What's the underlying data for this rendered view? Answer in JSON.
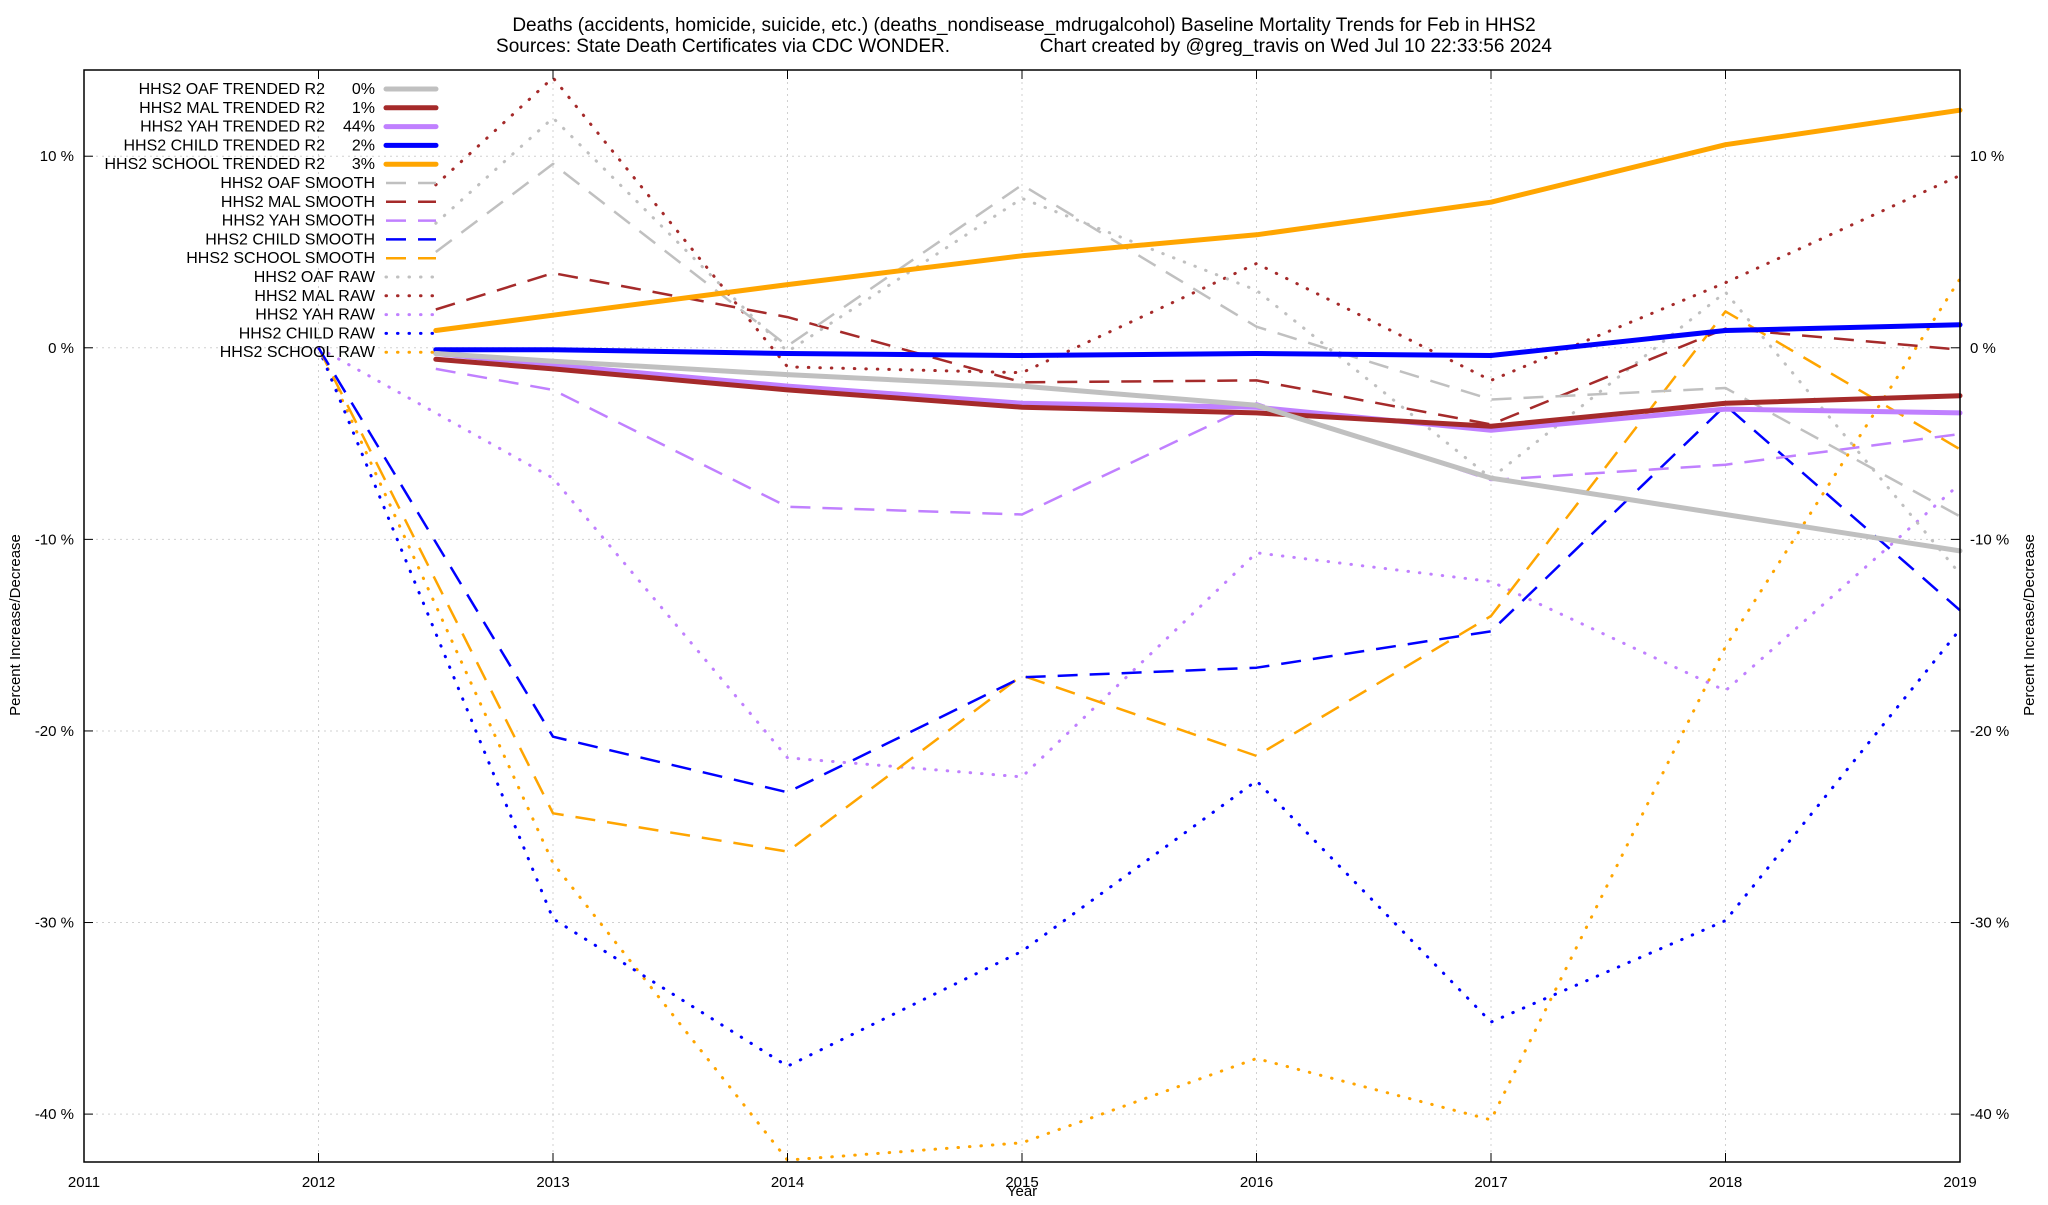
{
  "chart_data": {
    "type": "line",
    "title_lines": [
      "Deaths (accidents, homicide, suicide, etc.) (deaths_nondisease_mdrugalcohol)  Baseline Mortality Trends for Feb in HHS2",
      "Sources: State Death Certificates via CDC WONDER.                 Chart created by @greg_travis on Wed Jul 10 22:33:56 2024"
    ],
    "xlabel": "Year",
    "ylabel": "Percent Increase/Decrease",
    "y2label": "Percent Increase/Decrease",
    "xlim": [
      2011,
      2019
    ],
    "ylim": [
      -42.5,
      14.5
    ],
    "x_ticks": [
      2011,
      2012,
      2013,
      2014,
      2015,
      2016,
      2017,
      2018,
      2019
    ],
    "y_ticks": [
      10,
      0,
      -10,
      -20,
      -30,
      -40
    ],
    "y_tick_labels": [
      "10 %",
      "0 %",
      "-10 %",
      "-20 %",
      "-30 %",
      "-40 %"
    ],
    "grid": true,
    "legend_position": "top-left",
    "series": [
      {
        "name": "HHS2 OAF TRENDED R2",
        "r2": "0%",
        "color": "#c0c0c0",
        "style": "solid",
        "x": [
          2012.5,
          2013,
          2014,
          2015,
          2016,
          2017,
          2018,
          2019
        ],
        "values": [
          -0.3,
          -0.7,
          -1.4,
          -2.0,
          -3.0,
          -6.8,
          -8.7,
          -10.6
        ]
      },
      {
        "name": "HHS2 MAL TRENDED R2",
        "r2": "1%",
        "color": "#a52a2a",
        "style": "solid",
        "x": [
          2012.5,
          2013,
          2014,
          2015,
          2016,
          2017,
          2018,
          2019
        ],
        "values": [
          -0.6,
          -1.1,
          -2.2,
          -3.1,
          -3.4,
          -4.1,
          -2.9,
          -2.5
        ]
      },
      {
        "name": "HHS2 YAH TRENDED R2",
        "r2": "44%",
        "color": "#c080ff",
        "style": "solid",
        "x": [
          2012.5,
          2013,
          2014,
          2015,
          2016,
          2017,
          2018,
          2019
        ],
        "values": [
          -0.3,
          -0.9,
          -2.0,
          -2.9,
          -3.1,
          -4.3,
          -3.2,
          -3.4
        ]
      },
      {
        "name": "HHS2 CHILD TRENDED R2",
        "r2": "2%",
        "color": "#0000ff",
        "style": "solid",
        "x": [
          2012.5,
          2013,
          2014,
          2015,
          2016,
          2017,
          2018,
          2019
        ],
        "values": [
          -0.1,
          -0.1,
          -0.3,
          -0.4,
          -0.3,
          -0.4,
          0.9,
          1.2
        ]
      },
      {
        "name": "HHS2 SCHOOL TRENDED R2",
        "r2": "3%",
        "color": "#ffa500",
        "style": "solid",
        "x": [
          2012.5,
          2013,
          2014,
          2015,
          2016,
          2017,
          2018,
          2019
        ],
        "values": [
          0.9,
          1.7,
          3.3,
          4.8,
          5.9,
          7.6,
          10.6,
          12.4
        ]
      },
      {
        "name": "HHS2 OAF SMOOTH",
        "r2": "",
        "color": "#c0c0c0",
        "style": "dashed",
        "x": [
          2012.5,
          2013,
          2014,
          2015,
          2016,
          2017,
          2018,
          2019
        ],
        "values": [
          5.0,
          9.6,
          0.1,
          8.5,
          1.1,
          -2.7,
          -2.1,
          -8.8
        ]
      },
      {
        "name": "HHS2 MAL SMOOTH",
        "r2": "",
        "color": "#a52a2a",
        "style": "dashed",
        "x": [
          2012.5,
          2013,
          2014,
          2015,
          2016,
          2017,
          2018,
          2019
        ],
        "values": [
          2.0,
          3.9,
          1.6,
          -1.8,
          -1.7,
          -4.0,
          1.0,
          -0.1
        ]
      },
      {
        "name": "HHS2 YAH SMOOTH",
        "r2": "",
        "color": "#c080ff",
        "style": "dashed",
        "x": [
          2012.5,
          2013,
          2014,
          2015,
          2016,
          2017,
          2018,
          2019
        ],
        "values": [
          -1.1,
          -2.2,
          -8.3,
          -8.7,
          -2.9,
          -6.9,
          -6.1,
          -4.5
        ]
      },
      {
        "name": "HHS2 CHILD SMOOTH",
        "r2": "",
        "color": "#0000ff",
        "style": "dashed",
        "x": [
          2012,
          2013,
          2014,
          2015,
          2016,
          2017,
          2018,
          2019
        ],
        "values": [
          0,
          -20.3,
          -23.2,
          -17.2,
          -16.7,
          -14.8,
          -3.0,
          -13.7
        ]
      },
      {
        "name": "HHS2 SCHOOL SMOOTH",
        "r2": "",
        "color": "#ffa500",
        "style": "dashed",
        "x": [
          2012,
          2013,
          2014,
          2015,
          2016,
          2017,
          2018,
          2019
        ],
        "values": [
          0,
          -24.3,
          -26.3,
          -17.1,
          -21.3,
          -14.0,
          1.9,
          -5.3
        ]
      },
      {
        "name": "HHS2 OAF RAW",
        "r2": "",
        "color": "#c0c0c0",
        "style": "dotted",
        "x": [
          2012.5,
          2013,
          2014,
          2015,
          2016,
          2017,
          2018,
          2019
        ],
        "values": [
          6.5,
          12.0,
          -0.2,
          7.8,
          3.0,
          -6.8,
          2.9,
          -11.8
        ]
      },
      {
        "name": "HHS2 MAL RAW",
        "r2": "",
        "color": "#a52a2a",
        "style": "dotted",
        "x": [
          2012.5,
          2013,
          2014,
          2015,
          2016,
          2017,
          2018,
          2019
        ],
        "values": [
          8.5,
          14.1,
          -1.0,
          -1.3,
          4.4,
          -1.7,
          3.4,
          9.0
        ]
      },
      {
        "name": "HHS2 YAH RAW",
        "r2": "",
        "color": "#c080ff",
        "style": "dotted",
        "x": [
          2012,
          2013,
          2014,
          2015,
          2016,
          2017,
          2018,
          2019
        ],
        "values": [
          0,
          -6.8,
          -21.4,
          -22.4,
          -10.7,
          -12.2,
          -17.9,
          -7.1
        ]
      },
      {
        "name": "HHS2 CHILD RAW",
        "r2": "",
        "color": "#0000ff",
        "style": "dotted",
        "x": [
          2012,
          2013,
          2014,
          2015,
          2016,
          2017,
          2018,
          2019
        ],
        "values": [
          0,
          -29.8,
          -37.5,
          -31.5,
          -22.6,
          -35.2,
          -29.9,
          -14.7
        ]
      },
      {
        "name": "HHS2 SCHOOL RAW",
        "r2": "",
        "color": "#ffa500",
        "style": "dotted",
        "x": [
          2012,
          2013,
          2014,
          2015,
          2016,
          2017,
          2018,
          2019
        ],
        "values": [
          0,
          -26.9,
          -42.4,
          -41.5,
          -37.1,
          -40.3,
          -15.6,
          3.6
        ]
      }
    ]
  }
}
